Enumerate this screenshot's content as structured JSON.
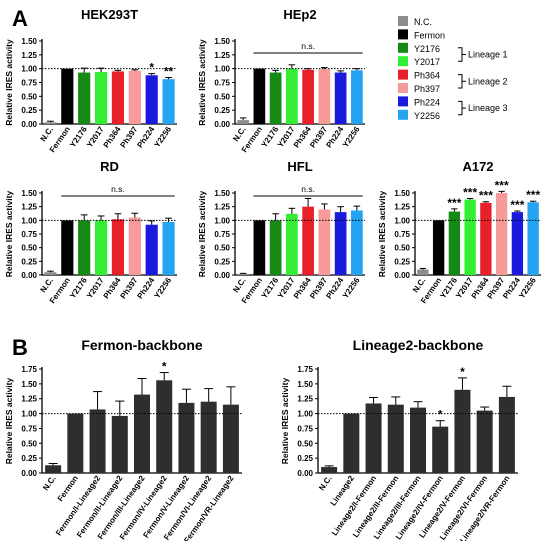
{
  "panels": {
    "a": "A",
    "b": "B"
  },
  "legend": {
    "items": [
      {
        "label": "N.C.",
        "color": "#8c8c8c"
      },
      {
        "label": "Fermon",
        "color": "#000000"
      },
      {
        "label": "Y2176",
        "color": "#138a13"
      },
      {
        "label": "Y2017",
        "color": "#33ee33"
      },
      {
        "label": "Ph364",
        "color": "#e8202a"
      },
      {
        "label": "Ph397",
        "color": "#f79a9a"
      },
      {
        "label": "Ph224",
        "color": "#1a1add"
      },
      {
        "label": "Y2256",
        "color": "#22a4f2"
      }
    ],
    "groups": [
      {
        "label": "Lineage 1",
        "from": 2,
        "to": 3
      },
      {
        "label": "Lineage 2",
        "from": 4,
        "to": 5
      },
      {
        "label": "Lineage 3",
        "from": 6,
        "to": 7
      }
    ]
  },
  "chart_data": [
    {
      "type": "bar",
      "title": "HEK293T",
      "ylabel": "Relative IRES activity",
      "ylim": [
        0,
        1.5
      ],
      "yticks": [
        "0.00",
        "0.25",
        "0.50",
        "0.75",
        "1.00",
        "1.25",
        "1.50"
      ],
      "reference_line": 1.0,
      "categories": [
        "N.C.",
        "Fermon",
        "Y2176",
        "Y2017",
        "Ph364",
        "Ph397",
        "Ph224",
        "Y2256"
      ],
      "values": [
        0.03,
        1.0,
        0.93,
        0.94,
        0.95,
        0.96,
        0.88,
        0.81
      ],
      "errors": [
        0.02,
        0.0,
        0.08,
        0.07,
        0.02,
        0.02,
        0.03,
        0.03
      ],
      "colors": [
        "#8c8c8c",
        "#000000",
        "#138a13",
        "#33ee33",
        "#e8202a",
        "#f79a9a",
        "#1a1add",
        "#22a4f2"
      ],
      "stars": [
        "",
        "",
        "",
        "",
        "",
        "",
        "*",
        "**"
      ]
    },
    {
      "type": "bar",
      "title": "HEp2",
      "ylabel": "Relative IRES activity",
      "ylim": [
        0,
        1.5
      ],
      "yticks": [
        "0.00",
        "0.25",
        "0.50",
        "0.75",
        "1.00",
        "1.25",
        "1.50"
      ],
      "reference_line": 1.0,
      "categories": [
        "N.C.",
        "Fermon",
        "Y2176",
        "Y2017",
        "Ph364",
        "Ph397",
        "Ph224",
        "Y2256"
      ],
      "values": [
        0.07,
        1.0,
        0.93,
        1.0,
        0.98,
        0.99,
        0.93,
        0.97
      ],
      "errors": [
        0.04,
        0.0,
        0.04,
        0.07,
        0.02,
        0.03,
        0.03,
        0.03
      ],
      "colors": [
        "#8c8c8c",
        "#000000",
        "#138a13",
        "#33ee33",
        "#e8202a",
        "#f79a9a",
        "#1a1add",
        "#22a4f2"
      ],
      "stars": [
        "",
        "",
        "",
        "",
        "",
        "",
        "",
        ""
      ],
      "ns_label": "n.s."
    },
    {
      "type": "bar",
      "title": "RD",
      "ylabel": "Relative IRES activity",
      "ylim": [
        0,
        1.5
      ],
      "yticks": [
        "0.00",
        "0.25",
        "0.50",
        "0.75",
        "1.00",
        "1.25",
        "1.50"
      ],
      "reference_line": 1.0,
      "categories": [
        "N.C.",
        "Fermon",
        "Y2176",
        "Y2017",
        "Ph364",
        "Ph397",
        "Ph224",
        "Y2256"
      ],
      "values": [
        0.05,
        1.0,
        1.0,
        1.0,
        1.02,
        1.05,
        0.92,
        0.97
      ],
      "errors": [
        0.02,
        0.0,
        0.1,
        0.08,
        0.1,
        0.08,
        0.07,
        0.07
      ],
      "colors": [
        "#8c8c8c",
        "#000000",
        "#138a13",
        "#33ee33",
        "#e8202a",
        "#f79a9a",
        "#1a1add",
        "#22a4f2"
      ],
      "stars": [
        "",
        "",
        "",
        "",
        "",
        "",
        "",
        ""
      ],
      "ns_label": "n.s."
    },
    {
      "type": "bar",
      "title": "HFL",
      "ylabel": "Relative IRES activity",
      "ylim": [
        0,
        1.5
      ],
      "yticks": [
        "0.00",
        "0.25",
        "0.50",
        "0.75",
        "1.00",
        "1.25",
        "1.50"
      ],
      "reference_line": 1.0,
      "categories": [
        "N.C.",
        "Fermon",
        "Y2176",
        "Y2017",
        "Ph364",
        "Ph397",
        "Ph224",
        "Y2256"
      ],
      "values": [
        0.02,
        1.0,
        1.0,
        1.12,
        1.25,
        1.2,
        1.15,
        1.18
      ],
      "errors": [
        0.01,
        0.0,
        0.12,
        0.1,
        0.15,
        0.1,
        0.1,
        0.08
      ],
      "colors": [
        "#8c8c8c",
        "#000000",
        "#138a13",
        "#33ee33",
        "#e8202a",
        "#f79a9a",
        "#1a1add",
        "#22a4f2"
      ],
      "stars": [
        "",
        "",
        "",
        "",
        "",
        "",
        "",
        ""
      ],
      "ns_label": "n.s."
    },
    {
      "type": "bar",
      "title": "A172",
      "ylabel": "Relative IRES activity",
      "ylim": [
        0,
        1.5
      ],
      "yticks": [
        "0.00",
        "0.25",
        "0.50",
        "0.75",
        "1.00",
        "1.25",
        "1.50"
      ],
      "reference_line": 1.0,
      "categories": [
        "N.C.",
        "Fermon",
        "Y2176",
        "Y2017",
        "Ph364",
        "Ph397",
        "Ph224",
        "Y2256"
      ],
      "values": [
        0.1,
        1.0,
        1.16,
        1.38,
        1.32,
        1.5,
        1.15,
        1.33
      ],
      "errors": [
        0.02,
        0.0,
        0.05,
        0.02,
        0.02,
        0.03,
        0.02,
        0.02
      ],
      "colors": [
        "#8c8c8c",
        "#000000",
        "#138a13",
        "#33ee33",
        "#e8202a",
        "#f79a9a",
        "#1a1add",
        "#22a4f2"
      ],
      "stars": [
        "",
        "",
        "***",
        "***",
        "***",
        "***",
        "***",
        "***"
      ]
    },
    {
      "type": "bar",
      "title": "Fermon-backbone",
      "ylabel": "Relative IRES activity",
      "ylim": [
        0,
        1.75
      ],
      "yticks": [
        "0.00",
        "0.25",
        "0.50",
        "0.75",
        "1.00",
        "1.25",
        "1.50",
        "1.75"
      ],
      "reference_line": 1.0,
      "categories": [
        "N.C.",
        "Fermon",
        "Fermon/I-Lineage2",
        "Fermon/II-Lineage2",
        "Fermon/III-Lineage2",
        "Fermon/IV-Lineage2",
        "Fermon/V-Lineage2",
        "Fermon/VI-Lineage2",
        "Fermon/VR-Lineage2"
      ],
      "values": [
        0.13,
        1.0,
        1.07,
        0.96,
        1.32,
        1.56,
        1.18,
        1.2,
        1.15
      ],
      "errors": [
        0.03,
        0.0,
        0.3,
        0.25,
        0.27,
        0.13,
        0.23,
        0.22,
        0.3
      ],
      "colors": [
        "#2e2e2e",
        "#2e2e2e",
        "#2e2e2e",
        "#2e2e2e",
        "#2e2e2e",
        "#2e2e2e",
        "#2e2e2e",
        "#2e2e2e",
        "#2e2e2e"
      ],
      "stars": [
        "",
        "",
        "",
        "",
        "",
        "*",
        "",
        "",
        ""
      ]
    },
    {
      "type": "bar",
      "title": "Lineage2-backbone",
      "ylabel": "Relative IRES activity",
      "ylim": [
        0,
        1.75
      ],
      "yticks": [
        "0.00",
        "0.25",
        "0.50",
        "0.75",
        "1.00",
        "1.25",
        "1.50",
        "1.75"
      ],
      "reference_line": 1.0,
      "categories": [
        "N.C.",
        "Lineage2",
        "Lineage2/I-Fermon",
        "Lineage2/II-Fermon",
        "Lineage2/III-Fermon",
        "Lineage2/IV-Fermon",
        "Lineage2/V-Fermon",
        "Lineage2/VI-Fermon",
        "Lineage2/VR-Fermon"
      ],
      "values": [
        0.1,
        1.0,
        1.17,
        1.15,
        1.1,
        0.78,
        1.4,
        1.05,
        1.28
      ],
      "errors": [
        0.02,
        0.0,
        0.1,
        0.13,
        0.1,
        0.1,
        0.2,
        0.06,
        0.18
      ],
      "colors": [
        "#2e2e2e",
        "#2e2e2e",
        "#2e2e2e",
        "#2e2e2e",
        "#2e2e2e",
        "#2e2e2e",
        "#2e2e2e",
        "#2e2e2e",
        "#2e2e2e"
      ],
      "stars": [
        "",
        "",
        "",
        "",
        "",
        "*",
        "*",
        "",
        ""
      ]
    }
  ]
}
